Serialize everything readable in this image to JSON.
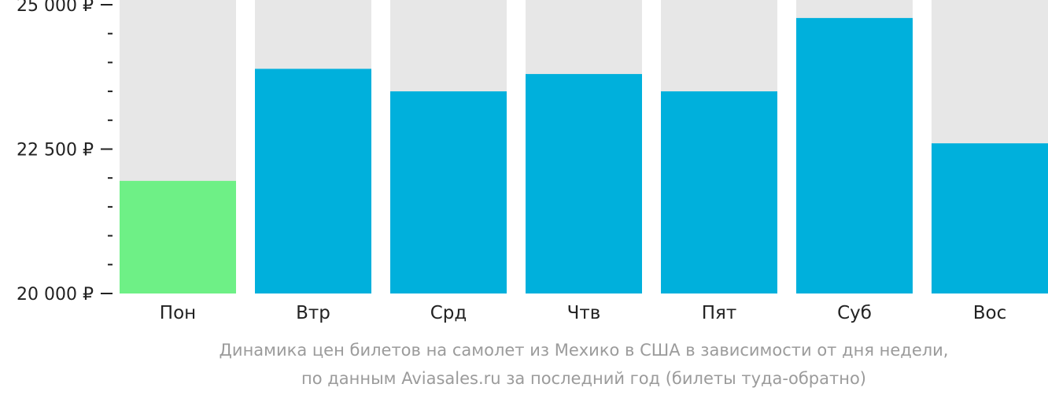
{
  "chart_data": {
    "type": "bar",
    "categories": [
      "Пон",
      "Втр",
      "Срд",
      "Чтв",
      "Пят",
      "Суб",
      "Вос"
    ],
    "values": [
      21950,
      23890,
      23500,
      23800,
      23500,
      24770,
      22600
    ],
    "highlight_index": 0,
    "ylim": [
      20000,
      25000
    ],
    "yticks": [
      20000,
      22500,
      25000
    ],
    "ytick_labels": [
      "20 000 ₽",
      "22 500 ₽",
      "25 000 ₽"
    ],
    "minor_tick_step": 500,
    "grid": false,
    "legend": "none",
    "title": "",
    "xlabel": "",
    "ylabel": ""
  },
  "caption": {
    "line1": "Динамика цен билетов на самолет из Мехико в США в зависимости от дня недели,",
    "line2": "по данным Aviasales.ru за последний год (билеты туда-обратно)"
  },
  "colors": {
    "bar": "#00b0dc",
    "highlight_bar": "#6ef086",
    "bar_background": "#e7e7e7",
    "axis": "#222222",
    "caption": "#9b9b9b"
  }
}
